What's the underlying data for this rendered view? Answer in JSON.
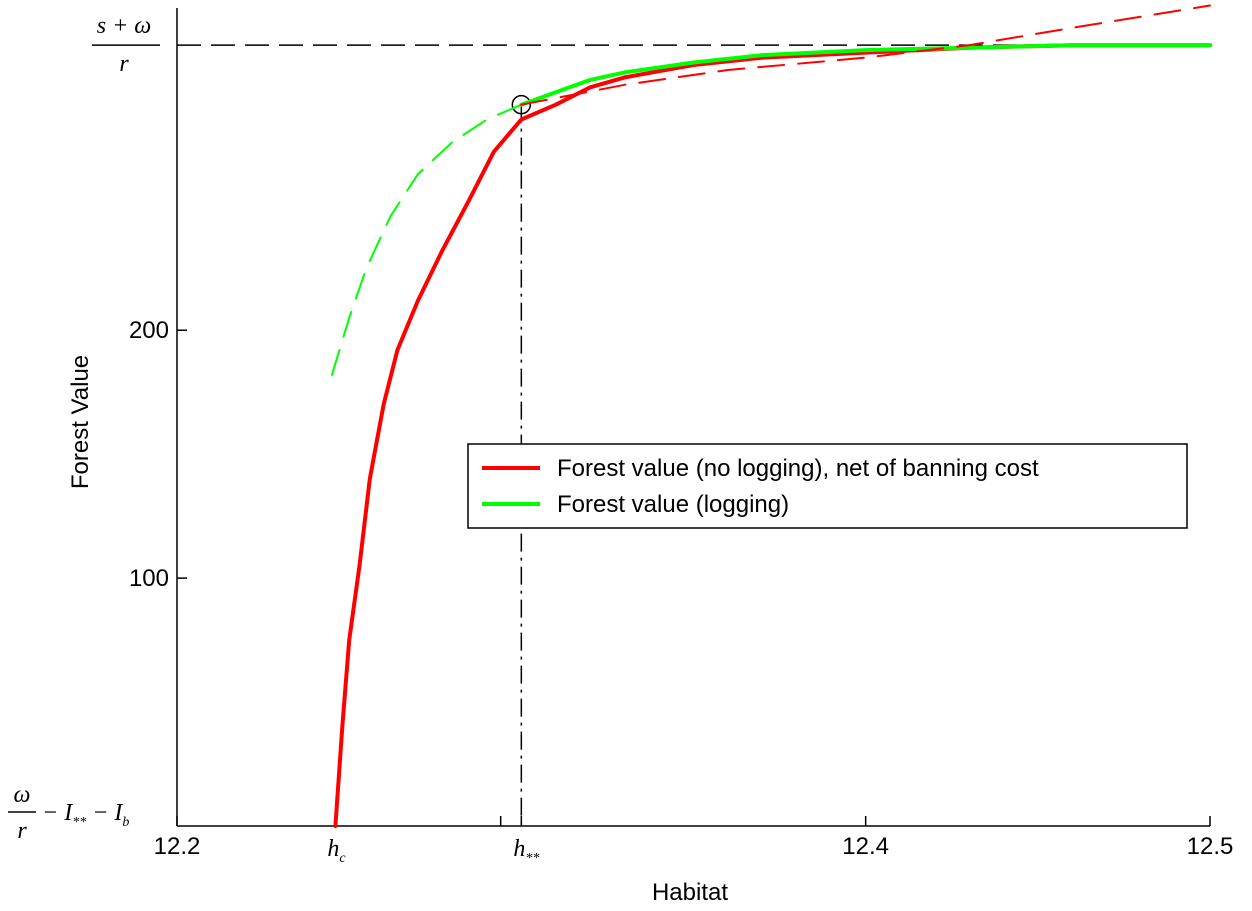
{
  "chart_data": {
    "type": "line",
    "xlabel": "Habitat",
    "ylabel": "Forest Value",
    "xlim": [
      12.2,
      12.5
    ],
    "ylim": [
      0,
      330
    ],
    "grid": false,
    "legend_position": "center-right",
    "x_ticks": [
      {
        "value": 12.2,
        "label": "12.2"
      },
      {
        "value": 12.4,
        "label": "12.4"
      },
      {
        "value": 12.5,
        "label": "12.5"
      }
    ],
    "y_ticks": [
      {
        "value": 100,
        "label": "100"
      },
      {
        "value": 200,
        "label": "200"
      }
    ],
    "special_x_ticks": [
      {
        "value": 12.246,
        "label_main": "h",
        "label_sub": "c"
      },
      {
        "value": 12.3,
        "label_main": "h",
        "label_sub": "**"
      }
    ],
    "minor_x_ticks": [
      12.294
    ],
    "special_y_labels": {
      "top": {
        "value": 315,
        "numerator": "s + ω",
        "denominator": "r"
      },
      "bottom": {
        "value": 0,
        "numerator": "ω",
        "denominator": "r",
        "suffix": "− I",
        "sub1": "**",
        "suffix2": "− I",
        "sub2": "b"
      }
    },
    "reference_lines": {
      "horizontal_asymptote": 315,
      "vertical_x": 12.3,
      "marker": {
        "x": 12.3,
        "y": 291
      }
    },
    "series": [
      {
        "name": "Forest value (no logging), net of banning cost",
        "color": "#ff0000",
        "style": "solid",
        "x": [
          12.246,
          12.248,
          12.25,
          12.253,
          12.256,
          12.26,
          12.264,
          12.27,
          12.277,
          12.285,
          12.292,
          12.3,
          12.31,
          12.32,
          12.33,
          12.35,
          12.37,
          12.4,
          12.43,
          12.46,
          12.5
        ],
        "y": [
          0,
          40,
          75,
          105,
          140,
          170,
          192,
          212,
          232,
          253,
          272,
          285,
          291,
          298,
          302,
          307,
          310,
          312,
          314,
          315,
          315
        ]
      },
      {
        "name": "Forest value (logging)",
        "color": "#00ff00",
        "style": "solid",
        "x": [
          12.3,
          12.31,
          12.32,
          12.33,
          12.35,
          12.37,
          12.4,
          12.43,
          12.46,
          12.5
        ],
        "y": [
          291,
          296,
          301,
          304,
          308,
          311,
          313,
          314,
          315,
          315
        ]
      },
      {
        "name": "",
        "color": "#00ff00",
        "style": "dashed",
        "x": [
          12.245,
          12.25,
          12.255,
          12.262,
          12.27,
          12.28,
          12.29,
          12.3
        ],
        "y": [
          182,
          205,
          225,
          246,
          263,
          276,
          285,
          291
        ]
      },
      {
        "name": "",
        "color": "#ff0000",
        "style": "dashed",
        "x": [
          12.3,
          12.33,
          12.36,
          12.4,
          12.43,
          12.46,
          12.5
        ],
        "y": [
          291,
          299,
          305,
          310,
          315,
          322,
          331
        ]
      }
    ],
    "legend": [
      {
        "label": "Forest value (no logging), net of banning cost",
        "color": "#ff0000"
      },
      {
        "label": "Forest value (logging)",
        "color": "#00ff00"
      }
    ]
  }
}
